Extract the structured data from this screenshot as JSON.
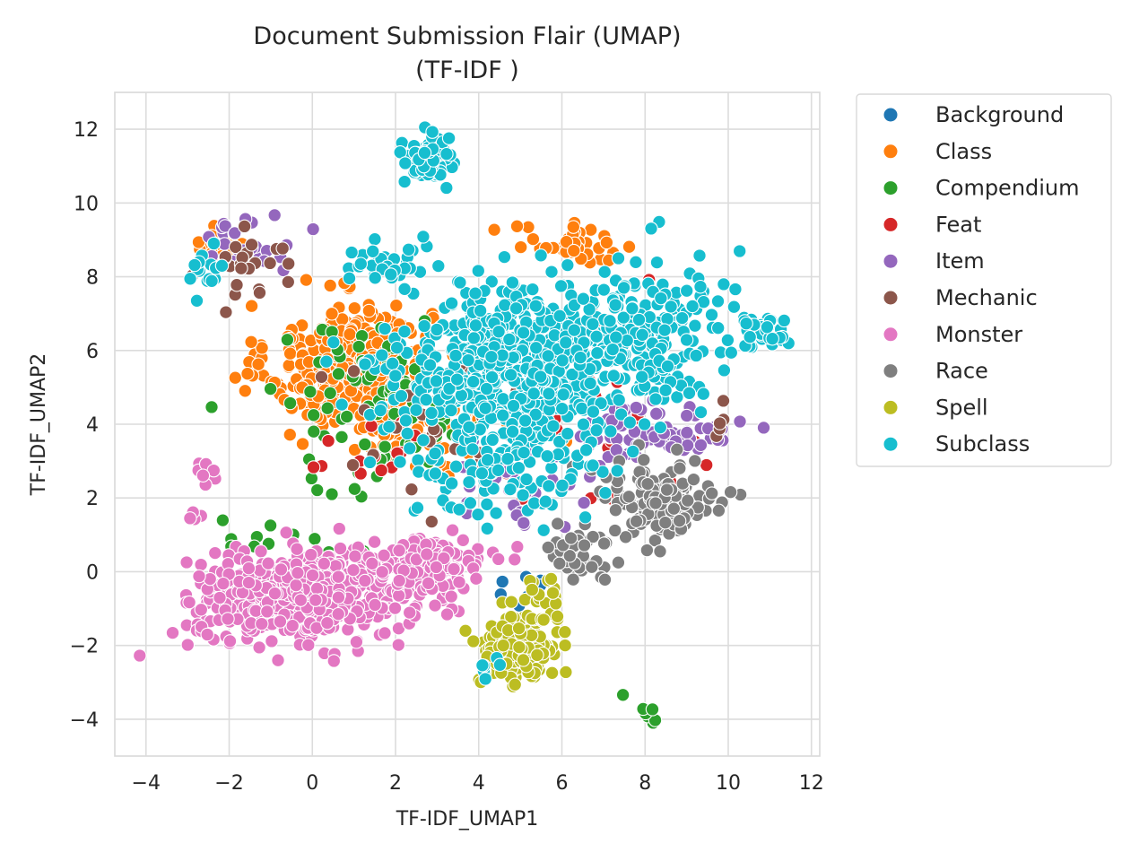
{
  "chart_data": {
    "type": "scatter",
    "title": "Document Submission Flair (UMAP)",
    "subtitle": "(TF-IDF )",
    "xlabel": "TF-IDF_UMAP1",
    "ylabel": "TF-IDF_UMAP2",
    "xlim": [
      -4.75,
      12.2
    ],
    "ylim": [
      -5.0,
      13.0
    ],
    "xticks": [
      -4,
      -2,
      0,
      2,
      4,
      6,
      8,
      10,
      12
    ],
    "yticks": [
      -4,
      -2,
      0,
      2,
      4,
      6,
      8,
      10,
      12
    ],
    "xtick_labels": [
      "−4",
      "−2",
      "0",
      "2",
      "4",
      "6",
      "8",
      "10",
      "12"
    ],
    "ytick_labels": [
      "−4",
      "−2",
      "0",
      "2",
      "4",
      "6",
      "8",
      "10",
      "12"
    ],
    "grid": true,
    "legend_position": "outside-right",
    "series": [
      {
        "name": "Background",
        "color": "#1f77b4",
        "clusters": [
          {
            "cx": 5.0,
            "cy": 0.2,
            "sx": 0.7,
            "sy": 0.6,
            "n": 5
          },
          {
            "cx": 4.7,
            "cy": -0.8,
            "sx": 0.3,
            "sy": 0.3,
            "n": 2
          }
        ]
      },
      {
        "name": "Class",
        "color": "#ff7f0e",
        "clusters": [
          {
            "cx": 0.9,
            "cy": 5.6,
            "sx": 1.3,
            "sy": 1.1,
            "n": 380
          },
          {
            "cx": -2.0,
            "cy": 8.8,
            "sx": 0.6,
            "sy": 0.4,
            "n": 25
          },
          {
            "cx": 6.3,
            "cy": 8.8,
            "sx": 1.0,
            "sy": 0.4,
            "n": 40
          },
          {
            "cx": 2.8,
            "cy": 4.2,
            "sx": 1.5,
            "sy": 1.0,
            "n": 70
          }
        ]
      },
      {
        "name": "Compendium",
        "color": "#2ca02c",
        "clusters": [
          {
            "cx": 1.5,
            "cy": 4.5,
            "sx": 1.8,
            "sy": 1.6,
            "n": 80
          },
          {
            "cx": -1.2,
            "cy": 1.0,
            "sx": 1.0,
            "sy": 0.4,
            "n": 10
          },
          {
            "cx": 8.1,
            "cy": -3.9,
            "sx": 0.15,
            "sy": 0.15,
            "n": 6
          },
          {
            "cx": 7.5,
            "cy": -3.3,
            "sx": 0.05,
            "sy": 0.05,
            "n": 1
          }
        ]
      },
      {
        "name": "Feat",
        "color": "#d62728",
        "clusters": [
          {
            "cx": 6.0,
            "cy": 4.5,
            "sx": 2.0,
            "sy": 1.8,
            "n": 50
          },
          {
            "cx": 1.5,
            "cy": 3.5,
            "sx": 1.2,
            "sy": 1.0,
            "n": 15
          }
        ]
      },
      {
        "name": "Item",
        "color": "#9467bd",
        "clusters": [
          {
            "cx": 8.3,
            "cy": 3.8,
            "sx": 1.2,
            "sy": 0.5,
            "n": 80
          },
          {
            "cx": -1.5,
            "cy": 8.9,
            "sx": 0.9,
            "sy": 0.5,
            "n": 25
          },
          {
            "cx": 5.0,
            "cy": 2.5,
            "sx": 1.2,
            "sy": 1.0,
            "n": 30
          }
        ]
      },
      {
        "name": "Mechanic",
        "color": "#8c564b",
        "clusters": [
          {
            "cx": -1.5,
            "cy": 8.3,
            "sx": 0.8,
            "sy": 0.6,
            "n": 25
          },
          {
            "cx": 3.0,
            "cy": 4.0,
            "sx": 1.8,
            "sy": 1.5,
            "n": 30
          },
          {
            "cx": 9.8,
            "cy": 4.0,
            "sx": 0.3,
            "sy": 0.3,
            "n": 5
          }
        ]
      },
      {
        "name": "Monster",
        "color": "#e377c2",
        "clusters": [
          {
            "cx": -0.2,
            "cy": -0.7,
            "sx": 1.7,
            "sy": 0.75,
            "n": 600
          },
          {
            "cx": 2.8,
            "cy": 0.2,
            "sx": 0.9,
            "sy": 0.45,
            "n": 150
          },
          {
            "cx": -2.6,
            "cy": 2.7,
            "sx": 0.3,
            "sy": 0.25,
            "n": 10
          },
          {
            "cx": -2.8,
            "cy": 1.5,
            "sx": 0.15,
            "sy": 0.15,
            "n": 4
          }
        ]
      },
      {
        "name": "Race",
        "color": "#7f7f7f",
        "clusters": [
          {
            "cx": 8.3,
            "cy": 1.9,
            "sx": 1.0,
            "sy": 0.8,
            "n": 130
          },
          {
            "cx": 6.3,
            "cy": 0.5,
            "sx": 0.6,
            "sy": 0.6,
            "n": 40
          }
        ]
      },
      {
        "name": "Spell",
        "color": "#bcbd22",
        "clusters": [
          {
            "cx": 4.9,
            "cy": -2.2,
            "sx": 0.6,
            "sy": 0.6,
            "n": 180
          },
          {
            "cx": 5.5,
            "cy": -1.0,
            "sx": 0.5,
            "sy": 0.6,
            "n": 30
          }
        ]
      },
      {
        "name": "Subclass",
        "color": "#17becf",
        "clusters": [
          {
            "cx": 4.8,
            "cy": 5.6,
            "sx": 1.8,
            "sy": 1.4,
            "n": 650
          },
          {
            "cx": 8.2,
            "cy": 6.6,
            "sx": 1.2,
            "sy": 1.4,
            "n": 170
          },
          {
            "cx": 10.8,
            "cy": 6.5,
            "sx": 0.5,
            "sy": 0.3,
            "n": 40
          },
          {
            "cx": 2.8,
            "cy": 11.2,
            "sx": 0.4,
            "sy": 0.45,
            "n": 70
          },
          {
            "cx": 1.8,
            "cy": 8.4,
            "sx": 0.6,
            "sy": 0.4,
            "n": 30
          },
          {
            "cx": -2.7,
            "cy": 8.0,
            "sx": 0.35,
            "sy": 0.4,
            "n": 15
          },
          {
            "cx": 4.5,
            "cy": 2.7,
            "sx": 1.5,
            "sy": 1.0,
            "n": 100
          },
          {
            "cx": 4.3,
            "cy": -2.5,
            "sx": 0.3,
            "sy": 0.3,
            "n": 6
          }
        ]
      }
    ]
  }
}
